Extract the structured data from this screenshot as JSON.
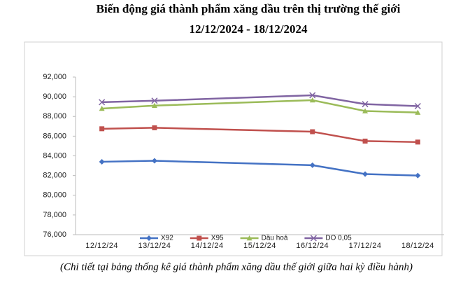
{
  "chart_data": {
    "type": "line",
    "title": "Biến động giá thành phẩm xăng dầu trên thị trường thế giới",
    "subtitle": "12/12/2024 - 18/12/2024",
    "caption": "(Chi tiết tại bảng thống kê giá thành phẩm xăng dầu thế giới giữa hai kỳ điều hành)",
    "categories": [
      "12/12/24",
      "13/12/24",
      "14/12/24",
      "15/12/24",
      "16/12/24",
      "17/12/24",
      "18/12/24"
    ],
    "span_gaps": true,
    "series": [
      {
        "name": "X92",
        "color": "#4472c4",
        "marker": "diamond",
        "values": [
          83400,
          83500,
          null,
          null,
          83050,
          82150,
          82000
        ]
      },
      {
        "name": "X95",
        "color": "#c0504d",
        "marker": "square",
        "values": [
          86750,
          86850,
          null,
          null,
          86450,
          85500,
          85400
        ]
      },
      {
        "name": "Dầu hoả",
        "color": "#9bbb59",
        "marker": "triangle",
        "values": [
          88800,
          89100,
          null,
          null,
          89650,
          88550,
          88400
        ]
      },
      {
        "name": "DO 0,05",
        "color": "#8064a2",
        "marker": "x",
        "values": [
          89450,
          89600,
          null,
          null,
          90150,
          89250,
          89050
        ]
      }
    ],
    "ylim": [
      76000,
      92000
    ],
    "yticks": [
      {
        "value": 76000,
        "label": "76,000"
      },
      {
        "value": 78000,
        "label": "78,000"
      },
      {
        "value": 80000,
        "label": "80,000"
      },
      {
        "value": 82000,
        "label": "82,000"
      },
      {
        "value": 84000,
        "label": "84,000"
      },
      {
        "value": 86000,
        "label": "86,000"
      },
      {
        "value": 88000,
        "label": "88,000"
      },
      {
        "value": 90000,
        "label": "90,000"
      },
      {
        "value": 92000,
        "label": "92,000"
      }
    ],
    "grid": false,
    "legend": "bottom"
  }
}
